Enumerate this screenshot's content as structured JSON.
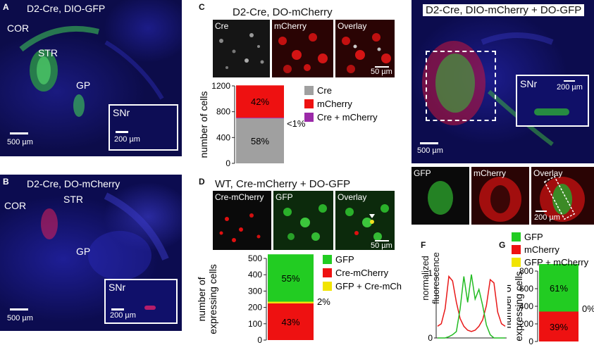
{
  "panels": {
    "A": {
      "letter": "A",
      "title": "D2-Cre, DIO-GFP",
      "labels": [
        "COR",
        "STR",
        "GP"
      ],
      "inset": "SNr",
      "scale": "500 µm",
      "inset_scale": "200 µm"
    },
    "B": {
      "letter": "B",
      "title": "D2-Cre, DO-mCherry",
      "labels": [
        "COR",
        "STR",
        "GP"
      ],
      "inset": "SNr",
      "scale": "500 µm",
      "inset_scale": "200 µm"
    },
    "C": {
      "letter": "C",
      "title": "D2-Cre, DO-mCherry",
      "tiles": [
        "Cre",
        "mCherry",
        "Overlay"
      ],
      "scale": "50 µm"
    },
    "D": {
      "letter": "D",
      "title": "WT, Cre-mCherry + DO-GFP",
      "tiles": [
        "Cre-mCherry",
        "GFP",
        "Overlay"
      ],
      "scale": "50 µm"
    },
    "E": {
      "letter": "E",
      "title": "D2-Cre, DIO-mCherry + DO-GFP",
      "inset": "SNr",
      "scale": "500 µm",
      "inset_scale": "200 µm",
      "tiles": [
        "GFP",
        "mCherry",
        "Overlay"
      ],
      "tile_scale": "200 µm"
    },
    "F": {
      "letter": "F",
      "ylabel_line1": "normalized",
      "ylabel_line2": "fluorescence"
    },
    "G": {
      "letter": "G"
    }
  },
  "chart_data": [
    {
      "id": "C",
      "type": "bar",
      "ylabel": "number of cells",
      "ylim": [
        0,
        1200
      ],
      "yticks": [
        0,
        400,
        800,
        1200
      ],
      "segments": [
        {
          "name": "Cre",
          "value": 700,
          "pct_label": "58%",
          "color": "#a0a0a0"
        },
        {
          "name": "Cre + mCherry",
          "value": 8,
          "pct_label": "",
          "color": "#9b2aa8"
        },
        {
          "name": "mCherry",
          "value": 500,
          "pct_label": "42%",
          "color": "#ee1111"
        }
      ],
      "legend": [
        {
          "name": "Cre",
          "color": "#a0a0a0"
        },
        {
          "name": "mCherry",
          "color": "#ee1111"
        },
        {
          "name": "Cre + mCherry",
          "color": "#9b2aa8"
        }
      ],
      "callout": "<1%"
    },
    {
      "id": "D",
      "type": "bar",
      "ylabel_line1": "number of",
      "ylabel_line2": "expressing cells",
      "ylim": [
        0,
        500
      ],
      "yticks": [
        0,
        100,
        200,
        300,
        400,
        500
      ],
      "segments": [
        {
          "name": "Cre-mCherry",
          "value": 225,
          "pct_label": "43%",
          "color": "#ee1111"
        },
        {
          "name": "GFP + Cre-mCherry",
          "value": 10,
          "pct_label": "",
          "color": "#f1e400"
        },
        {
          "name": "GFP",
          "value": 290,
          "pct_label": "55%",
          "color": "#22cc22"
        }
      ],
      "legend": [
        {
          "name": "GFP",
          "color": "#22cc22"
        },
        {
          "name": "Cre-mCherry",
          "color": "#ee1111"
        },
        {
          "name": "GFP + Cre-mCherry",
          "color": "#f1e400"
        }
      ],
      "callout": "2%"
    },
    {
      "id": "G",
      "type": "bar",
      "ylabel_line1": "number of",
      "ylabel_line2": "expressing cells",
      "ylim": [
        0,
        800
      ],
      "yticks": [
        0,
        200,
        400,
        600,
        800
      ],
      "segments": [
        {
          "name": "mCherry",
          "value": 340,
          "pct_label": "39%",
          "color": "#ee1111"
        },
        {
          "name": "GFP",
          "value": 540,
          "pct_label": "61%",
          "color": "#22cc22"
        }
      ],
      "legend": [
        {
          "name": "GFP",
          "color": "#22cc22"
        },
        {
          "name": "mCherry",
          "color": "#ee1111"
        },
        {
          "name": "GFP + mCherry",
          "color": "#f1e400"
        }
      ],
      "callout": "0%"
    },
    {
      "id": "F",
      "type": "line",
      "ylim": [
        0,
        1
      ],
      "yticks": [
        0,
        1
      ],
      "series": [
        {
          "color": "#e81818",
          "values": [
            0.18,
            0.22,
            0.45,
            0.95,
            0.88,
            0.55,
            0.3,
            0.18,
            0.12,
            0.1,
            0.12,
            0.18,
            0.28,
            0.5,
            0.9,
            0.85,
            0.4,
            0.22,
            0.18
          ]
        },
        {
          "color": "#22bb22",
          "values": [
            0.0,
            0.0,
            0.0,
            0.02,
            0.05,
            0.1,
            0.45,
            0.95,
            0.55,
            0.98,
            0.6,
            0.75,
            0.5,
            0.2,
            0.05,
            0.0,
            0.0,
            0.0,
            0.0
          ]
        }
      ]
    }
  ]
}
